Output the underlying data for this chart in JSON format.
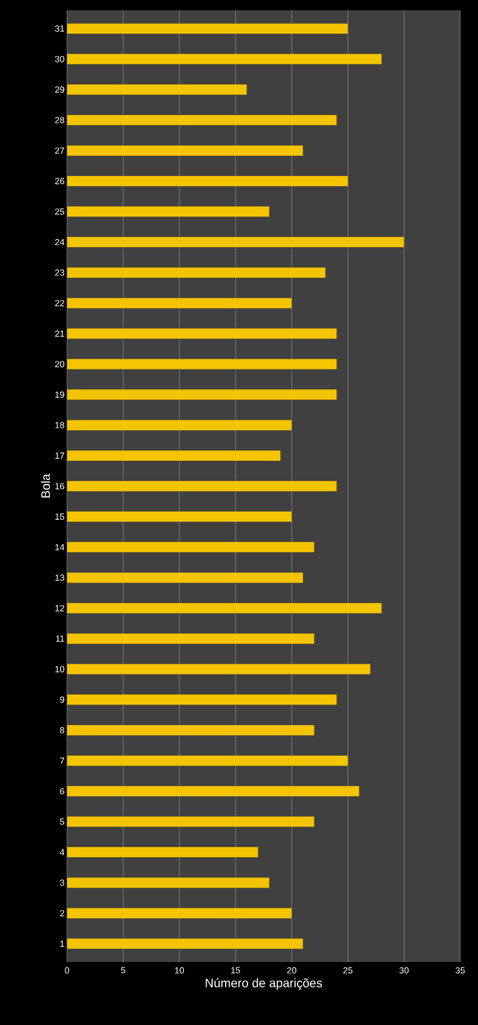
{
  "chart_data": {
    "type": "bar",
    "orientation": "horizontal",
    "xlabel": "Número de aparições",
    "ylabel": "Bola",
    "categories": [
      "31",
      "30",
      "29",
      "28",
      "27",
      "26",
      "25",
      "24",
      "23",
      "22",
      "21",
      "20",
      "19",
      "18",
      "17",
      "16",
      "15",
      "14",
      "13",
      "12",
      "11",
      "10",
      "9",
      "8",
      "7",
      "6",
      "5",
      "4",
      "3",
      "2",
      "1"
    ],
    "values": [
      25,
      28,
      16,
      24,
      21,
      25,
      18,
      30,
      23,
      20,
      24,
      24,
      24,
      20,
      19,
      24,
      20,
      22,
      21,
      28,
      22,
      27,
      24,
      22,
      25,
      26,
      22,
      17,
      18,
      20,
      21
    ],
    "color": "#f5c400",
    "xlim": [
      0,
      35
    ],
    "xticks": [
      0,
      5,
      10,
      15,
      20,
      25,
      30,
      35
    ],
    "grid": "x"
  }
}
